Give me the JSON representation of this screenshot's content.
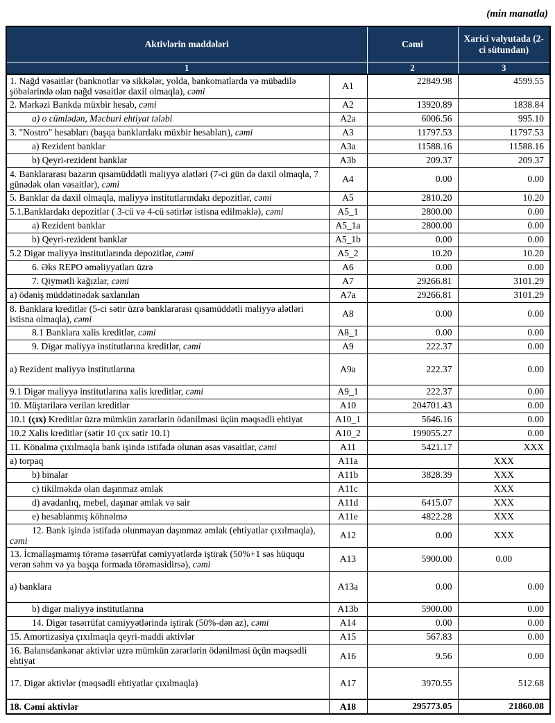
{
  "note": "(min manatla)",
  "colors": {
    "header_bg": "#17375E",
    "header_text": "#FFFFFF",
    "border": "#000000"
  },
  "table": {
    "header": {
      "items_label": "Aktivlərin  maddələri",
      "total_label": "Cəmi",
      "foreign_label": "Xarici valyutada (2-ci sütundan)",
      "num1": "1",
      "num2": "2",
      "num3": "3"
    },
    "rows": [
      {
        "text": "1. Nağd vəsaitlər (banknotlar və sikkələr, yolda, bankomatlarda və mübadilə şöbələrində olan nağd vəsaitlər daxil olmaqla), ",
        "italic": "cəmi",
        "code": "A1",
        "total": "22849.98",
        "foreign": "4599.55"
      },
      {
        "text": "2. Mərkəzi Bankda müxbir hesab, ",
        "italic": "cəmi",
        "code": "A2",
        "total": "13920.89",
        "foreign": "1838.84"
      },
      {
        "text": "",
        "italic": "a) o cümlədən, Məcburi ehtiyat tələbi",
        "code": "A2a",
        "total": "6006.56",
        "foreign": "995.10",
        "indent": true
      },
      {
        "text": "3. \"Nostro\" hesabları (başqa banklardakı müxbir hesabları), ",
        "italic": "cəmi",
        "code": "A3",
        "total": "11797.53",
        "foreign": "11797.53"
      },
      {
        "text": "a) Rezident banklar",
        "code": "A3a",
        "total": "11588.16",
        "foreign": "11588.16",
        "indent": true
      },
      {
        "text": "b) Qeyri-rezident banklar",
        "code": "A3b",
        "total": "209.37",
        "foreign": "209.37",
        "indent": true
      },
      {
        "text": "4. Banklararası bazarın qısamüddətli maliyyə alətləri (7-ci gün də daxil olmaqla, 7 günədək olan vəsaitlər), ",
        "italic": "cəmi",
        "code": "A4",
        "total": "0.00",
        "foreign": "0.00",
        "vmid": true
      },
      {
        "text": "5. Banklar da daxil olmaqla, maliyyə institutlarındakı depozitlər, ",
        "italic": "cəmi",
        "code": "A5",
        "total": "2810.20",
        "foreign": "10.20"
      },
      {
        "text": "5.1.Banklardakı depozitlər ( 3-cü və 4-cü sətirlər istisna edilməklə), ",
        "italic": "cəmi",
        "code": "A5_1",
        "total": "2800.00",
        "foreign": "0.00"
      },
      {
        "text": "a) Rezident banklar",
        "code": "A5_1a",
        "total": "2800.00",
        "foreign": "0.00",
        "indent": true
      },
      {
        "text": "b) Qeyri-rezident banklar",
        "code": "A5_1b",
        "total": "0.00",
        "foreign": "0.00",
        "indent": true
      },
      {
        "text": "5.2 Digər maliyyə institutlarında depozitlər, ",
        "italic": "cəmi",
        "code": "A5_2",
        "total": "10.20",
        "foreign": "10.20"
      },
      {
        "text": "6. Əks REPO əməliyyatları üzrə",
        "code": "A6",
        "total": "0.00",
        "foreign": "0.00",
        "indent": true
      },
      {
        "text": "7. Qiymətli kağızlar, ",
        "italic": "cəmi",
        "code": "A7",
        "total": "29266.81",
        "foreign": "3101.29",
        "indent": true
      },
      {
        "text": "a) ödəniş müddətinədək saxlanılan",
        "code": "A7a",
        "total": "29266.81",
        "foreign": "3101.29"
      },
      {
        "text": "8. Banklara kreditlər (5-ci sətir üzrə banklararası qısamüddətli maliyyə alətləri istisna olmaqla), ",
        "italic": "cəmi",
        "code": "A8",
        "total": "0.00",
        "foreign": "0.00",
        "vmid": true
      },
      {
        "text": "8.1 Banklara xalis kreditlər, ",
        "italic": "cəmi",
        "code": "A8_1",
        "total": "0.00",
        "foreign": "0.00",
        "indent": true
      },
      {
        "text": "9. Digər maliyyə institutlarına kreditlər, ",
        "italic": "cəmi",
        "code": "A9",
        "total": "222.37",
        "foreign": "0.00",
        "indent": true
      },
      {
        "text": "a) Rezident maliyyə institutlarına",
        "code": "A9a",
        "total": "222.37",
        "foreign": "0.00",
        "tall": true
      },
      {
        "text": "9.1 Digər maliyyə institutlarına xalis kreditlər, ",
        "italic": "cəmi",
        "code": "A9_1",
        "total": "222.37",
        "foreign": "0.00"
      },
      {
        "text": "10. Müştərilərə verilən kreditlər",
        "code": "A10",
        "total": "204701.43",
        "foreign": "0.00"
      },
      {
        "text": "10.1 ",
        "bold_part": "(çıx)",
        "post": " Kreditlər üzrə mümkün zərərlərin ödənilməsi üçün məqsədli ehtiyat",
        "code": "A10_1",
        "total": "5646.16",
        "foreign": "0.00"
      },
      {
        "text": "10.2 Xalis kreditlər (sətir 10 çıx sətir 10.1)",
        "code": "A10_2",
        "total": "199055.27",
        "foreign": "0.00"
      },
      {
        "text": "11. Könəlmə çıxılmaqla bank işində istifadə olunan əsas vəsaitlər, ",
        "italic": "cəmi",
        "code": "A11",
        "total": "5421.17",
        "foreign": "XXX"
      },
      {
        "text": "a) torpaq",
        "code": "A11a",
        "total": "",
        "foreign": "XXX",
        "fcenter": true
      },
      {
        "text": "b) binalar",
        "code": "A11b",
        "total": "3828.39",
        "foreign": "XXX",
        "indent": true,
        "fcenter": true
      },
      {
        "text": "c) tikilməkdə olan daşınmaz əmlak",
        "code": "A11c",
        "total": "",
        "foreign": "XXX",
        "indent": true,
        "fcenter": true
      },
      {
        "text": "d) avadanlıq, mebel, daşınar əmlak və sair",
        "code": "A11d",
        "total": "6415.07",
        "foreign": "XXX",
        "indent": true,
        "fcenter": true
      },
      {
        "text": "e) hesablanmış köhnəlmə",
        "code": "A11e",
        "total": "4822.28",
        "foreign": "XXX",
        "indent": true,
        "fcenter": true
      },
      {
        "text": "12. Bank işində istifadə olunmayan daşınmaz əmlak (ehtiyatlar çıxılmaqla), ",
        "italic": "cəmi",
        "code": "A12",
        "total": "0.00",
        "foreign": "XXX",
        "hang": true,
        "vmid": true,
        "fcenter": true
      },
      {
        "text": "13. İcmallaşmamış törəmə təsərrüfat cəmiyyətlərdə iştirak (50%+1 səs hüququ verən səhm və ya başqa formada törəməsidirsə), ",
        "italic": "cəmi",
        "code": "A13",
        "total": "5900.00",
        "foreign": "0.00",
        "vmid": true,
        "fcenter": true
      },
      {
        "text": "a) banklara",
        "code": "A13a",
        "total": "0.00",
        "foreign": "0.00",
        "tall": true
      },
      {
        "text": "b) digər maliyyə institutlarına",
        "code": "A13b",
        "total": "5900.00",
        "foreign": "0.00",
        "indent": true
      },
      {
        "text": "14. Digər təsərrüfat cəmiyyətlərində iştirak (50%-dən az), ",
        "italic": "cəmi",
        "code": "A14",
        "total": "0.00",
        "foreign": "0.00",
        "indent": true
      },
      {
        "text": "15. Amortizasiya çıxılmaqla qeyri-maddi aktivlər",
        "code": "A15",
        "total": "567.83",
        "foreign": "0.00"
      },
      {
        "text": "16. Balansdankənar aktivlər uzrə mümkün zərərlərin ödənilməsi üçün məqsədli ehtiyat",
        "code": "A16",
        "total": "9.56",
        "foreign": "0.00",
        "vmid": true
      },
      {
        "text": "17. Digər aktivlər (məqsədli ehtiyatlar çıxılmaqla)",
        "code": "A17",
        "total": "3970.55",
        "foreign": "512.68",
        "tall": true
      },
      {
        "text": "18. Cəmi aktivlər",
        "code": "A18",
        "total": "295773.05",
        "foreign": "21860.08",
        "bold": true,
        "thick_top": true
      }
    ]
  }
}
